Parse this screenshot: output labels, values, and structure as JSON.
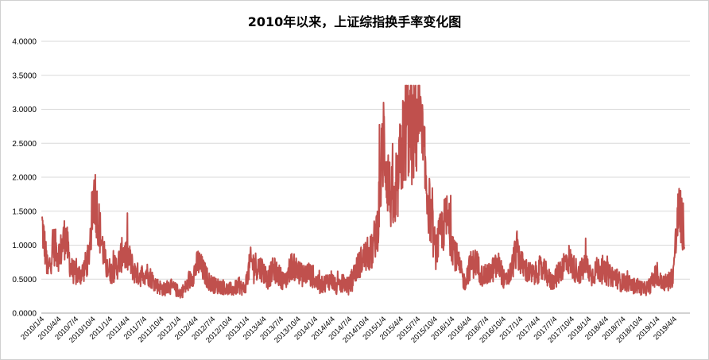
{
  "chart_data": {
    "type": "line",
    "title": "2010年以来，上证综指换手率变化图",
    "xlabel": "",
    "ylabel": "",
    "ylim": [
      0,
      4
    ],
    "y_ticks": [
      "0.0000",
      "0.5000",
      "1.0000",
      "1.5000",
      "2.0000",
      "2.5000",
      "3.0000",
      "3.5000",
      "4.0000"
    ],
    "x_ticks": [
      "2010/1/4",
      "2010/4/4",
      "2010/7/4",
      "2010/10/4",
      "2011/1/4",
      "2011/4/4",
      "2011/7/4",
      "2011/10/4",
      "2012/1/4",
      "2012/4/4",
      "2012/7/4",
      "2012/10/4",
      "2013/1/4",
      "2013/4/4",
      "2013/7/4",
      "2013/10/4",
      "2014/1/4",
      "2014/4/4",
      "2014/7/4",
      "2014/10/4",
      "2015/1/4",
      "2015/4/4",
      "2015/7/4",
      "2015/10/4",
      "2016/1/4",
      "2016/4/4",
      "2016/7/4",
      "2016/10/4",
      "2017/1/4",
      "2017/4/4",
      "2017/7/4",
      "2017/10/4",
      "2018/1/4",
      "2018/4/4",
      "2018/7/4",
      "2018/10/4",
      "2019/1/4",
      "2019/4/4"
    ],
    "grid": true,
    "legend": "none",
    "line_color": "#c0504d",
    "series": [
      {
        "x": [
          "2010/1",
          "2010/2",
          "2010/3",
          "2010/4",
          "2010/5",
          "2010/6",
          "2010/7",
          "2010/8",
          "2010/9",
          "2010/10",
          "2010/11",
          "2010/12",
          "2011/1",
          "2011/2",
          "2011/3",
          "2011/4",
          "2011/5",
          "2011/6",
          "2011/7",
          "2011/8",
          "2011/9",
          "2011/10",
          "2011/11",
          "2011/12",
          "2012/1",
          "2012/2",
          "2012/3",
          "2012/4",
          "2012/5",
          "2012/6",
          "2012/7",
          "2012/8",
          "2012/9",
          "2012/10",
          "2012/11",
          "2012/12",
          "2013/1",
          "2013/2",
          "2013/3",
          "2013/4",
          "2013/5",
          "2013/6",
          "2013/7",
          "2013/8",
          "2013/9",
          "2013/10",
          "2013/11",
          "2013/12",
          "2014/1",
          "2014/2",
          "2014/3",
          "2014/4",
          "2014/5",
          "2014/6",
          "2014/7",
          "2014/8",
          "2014/9",
          "2014/10",
          "2014/11",
          "2014/12",
          "2015/1",
          "2015/2",
          "2015/3",
          "2015/4",
          "2015/5",
          "2015/6",
          "2015/7",
          "2015/8",
          "2015/9",
          "2015/10",
          "2015/11",
          "2015/12",
          "2016/1",
          "2016/2",
          "2016/3",
          "2016/4",
          "2016/5",
          "2016/6",
          "2016/7",
          "2016/8",
          "2016/9",
          "2016/10",
          "2016/11",
          "2016/12",
          "2017/1",
          "2017/2",
          "2017/3",
          "2017/4",
          "2017/5",
          "2017/6",
          "2017/7",
          "2017/8",
          "2017/9",
          "2017/10",
          "2017/11",
          "2017/12",
          "2018/1",
          "2018/2",
          "2018/3",
          "2018/4",
          "2018/5",
          "2018/6",
          "2018/7",
          "2018/8",
          "2018/9",
          "2018/10",
          "2018/11",
          "2018/12",
          "2019/1",
          "2019/2",
          "2019/3",
          "2019/4"
        ],
        "values": [
          1.3,
          0.6,
          1.0,
          0.85,
          1.15,
          0.65,
          0.55,
          0.6,
          0.8,
          1.8,
          1.2,
          0.7,
          0.6,
          0.7,
          0.9,
          0.8,
          0.6,
          0.55,
          0.6,
          0.5,
          0.4,
          0.35,
          0.4,
          0.35,
          0.3,
          0.4,
          0.55,
          0.75,
          0.6,
          0.45,
          0.4,
          0.4,
          0.35,
          0.35,
          0.4,
          0.35,
          0.75,
          0.7,
          0.65,
          0.5,
          0.65,
          0.55,
          0.45,
          0.7,
          0.65,
          0.55,
          0.6,
          0.5,
          0.4,
          0.45,
          0.5,
          0.35,
          0.45,
          0.4,
          0.6,
          0.75,
          0.85,
          0.9,
          1.3,
          2.6,
          1.8,
          1.5,
          2.3,
          2.8,
          2.6,
          2.9,
          2.2,
          1.5,
          0.9,
          1.2,
          1.4,
          1.0,
          0.7,
          0.45,
          0.7,
          0.75,
          0.55,
          0.55,
          0.65,
          0.7,
          0.45,
          0.6,
          0.95,
          0.7,
          0.6,
          0.55,
          0.65,
          0.6,
          0.45,
          0.55,
          0.7,
          0.8,
          0.65,
          0.6,
          0.7,
          0.55,
          0.65,
          0.6,
          0.55,
          0.55,
          0.45,
          0.45,
          0.4,
          0.4,
          0.35,
          0.4,
          0.55,
          0.45,
          0.45,
          0.55,
          1.5,
          1.2
        ]
      }
    ]
  }
}
